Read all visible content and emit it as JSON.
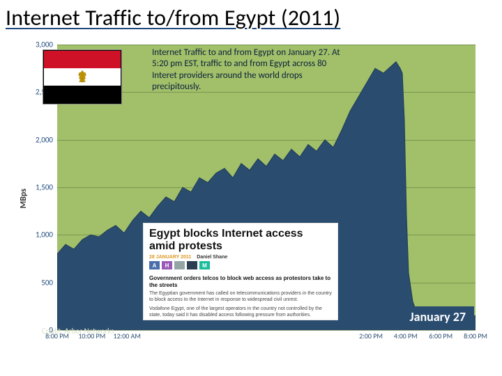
{
  "title": {
    "text": "Internet Traffic to/from Egypt (2011)"
  },
  "chart": {
    "type": "area",
    "background_color": "#a2c06a",
    "grid_color": "#5a7a3c",
    "area_fill": "#2a4c6f",
    "area_stroke": "#1e3a54",
    "y_label": "MBps",
    "ylim": [
      0,
      3000
    ],
    "ytick_step": 500,
    "y_ticks": [
      0,
      500,
      1000,
      1500,
      2000,
      2500,
      3000
    ],
    "y_tick_labels": [
      "0",
      "500",
      "1,000",
      "1,500",
      "2,000",
      "2,500",
      "3,000"
    ],
    "x_ticks": [
      {
        "pos": 0.0,
        "label": "8:00 PM"
      },
      {
        "pos": 0.083,
        "label": "10:00 PM"
      },
      {
        "pos": 0.167,
        "label": "12:00 AM"
      },
      {
        "pos": 0.75,
        "label": "2:00 PM"
      },
      {
        "pos": 0.833,
        "label": "4:00 PM"
      },
      {
        "pos": 0.917,
        "label": "6:00 PM"
      },
      {
        "pos": 1.0,
        "label": "8:00 PM"
      }
    ],
    "series": [
      {
        "x": 0.0,
        "y": 800
      },
      {
        "x": 0.02,
        "y": 900
      },
      {
        "x": 0.04,
        "y": 850
      },
      {
        "x": 0.06,
        "y": 950
      },
      {
        "x": 0.08,
        "y": 1000
      },
      {
        "x": 0.1,
        "y": 980
      },
      {
        "x": 0.12,
        "y": 1050
      },
      {
        "x": 0.14,
        "y": 1100
      },
      {
        "x": 0.16,
        "y": 1020
      },
      {
        "x": 0.18,
        "y": 1150
      },
      {
        "x": 0.2,
        "y": 1250
      },
      {
        "x": 0.22,
        "y": 1180
      },
      {
        "x": 0.24,
        "y": 1300
      },
      {
        "x": 0.26,
        "y": 1400
      },
      {
        "x": 0.28,
        "y": 1350
      },
      {
        "x": 0.3,
        "y": 1500
      },
      {
        "x": 0.32,
        "y": 1450
      },
      {
        "x": 0.34,
        "y": 1600
      },
      {
        "x": 0.36,
        "y": 1550
      },
      {
        "x": 0.38,
        "y": 1650
      },
      {
        "x": 0.4,
        "y": 1700
      },
      {
        "x": 0.42,
        "y": 1600
      },
      {
        "x": 0.44,
        "y": 1750
      },
      {
        "x": 0.46,
        "y": 1680
      },
      {
        "x": 0.48,
        "y": 1800
      },
      {
        "x": 0.5,
        "y": 1720
      },
      {
        "x": 0.52,
        "y": 1850
      },
      {
        "x": 0.54,
        "y": 1780
      },
      {
        "x": 0.56,
        "y": 1900
      },
      {
        "x": 0.58,
        "y": 1820
      },
      {
        "x": 0.6,
        "y": 1950
      },
      {
        "x": 0.62,
        "y": 1880
      },
      {
        "x": 0.64,
        "y": 2000
      },
      {
        "x": 0.66,
        "y": 1920
      },
      {
        "x": 0.68,
        "y": 2100
      },
      {
        "x": 0.7,
        "y": 2300
      },
      {
        "x": 0.72,
        "y": 2450
      },
      {
        "x": 0.74,
        "y": 2600
      },
      {
        "x": 0.76,
        "y": 2750
      },
      {
        "x": 0.78,
        "y": 2700
      },
      {
        "x": 0.8,
        "y": 2780
      },
      {
        "x": 0.81,
        "y": 2820
      },
      {
        "x": 0.82,
        "y": 2750
      },
      {
        "x": 0.825,
        "y": 2700
      },
      {
        "x": 0.83,
        "y": 2200
      },
      {
        "x": 0.835,
        "y": 1200
      },
      {
        "x": 0.84,
        "y": 600
      },
      {
        "x": 0.85,
        "y": 300
      },
      {
        "x": 0.86,
        "y": 180
      },
      {
        "x": 0.88,
        "y": 150
      },
      {
        "x": 0.9,
        "y": 170
      },
      {
        "x": 0.92,
        "y": 140
      },
      {
        "x": 0.94,
        "y": 160
      },
      {
        "x": 0.96,
        "y": 150
      },
      {
        "x": 0.98,
        "y": 160
      },
      {
        "x": 1.0,
        "y": 150
      }
    ]
  },
  "flag": {
    "colors": {
      "top": "#ce1126",
      "middle": "#ffffff",
      "bottom": "#000000",
      "emblem": "#c09300"
    }
  },
  "annotation": {
    "text": "Internet Traffic to and from Egypt on January 27. At 5:20 pm EST, traffic to and from Egypt across 80 Interet providers around the world  drops precipitously.",
    "color": "#0b1f3a",
    "fontsize": 13
  },
  "date_badge": {
    "text": "January 27",
    "bg": "#2a4c6f",
    "color": "#ffffff"
  },
  "credit": {
    "text": "Credit: Arbor Networks"
  },
  "news": {
    "headline": "Egypt blocks Internet access amid protests",
    "date": "28 JANUARY 2011",
    "author": "Daniel Shane",
    "share_colors": [
      "#4a6ea9",
      "#9b59b6",
      "#95a5a6",
      "#2c3e50",
      "#1abc9c"
    ],
    "share_labels": [
      "A",
      "H",
      "",
      "",
      "M"
    ],
    "subhead": "Government orders telcos to block web access as protestors take to the streets",
    "body1": "The Egyptian government has called on telecommunications providers in the country to block access to the Internet in response to widespread civil unrest.",
    "body2": "Vodafone Egypt, one of the largest operators in the country not controlled by the state, today said it has disabled access following pressure from authorities."
  }
}
